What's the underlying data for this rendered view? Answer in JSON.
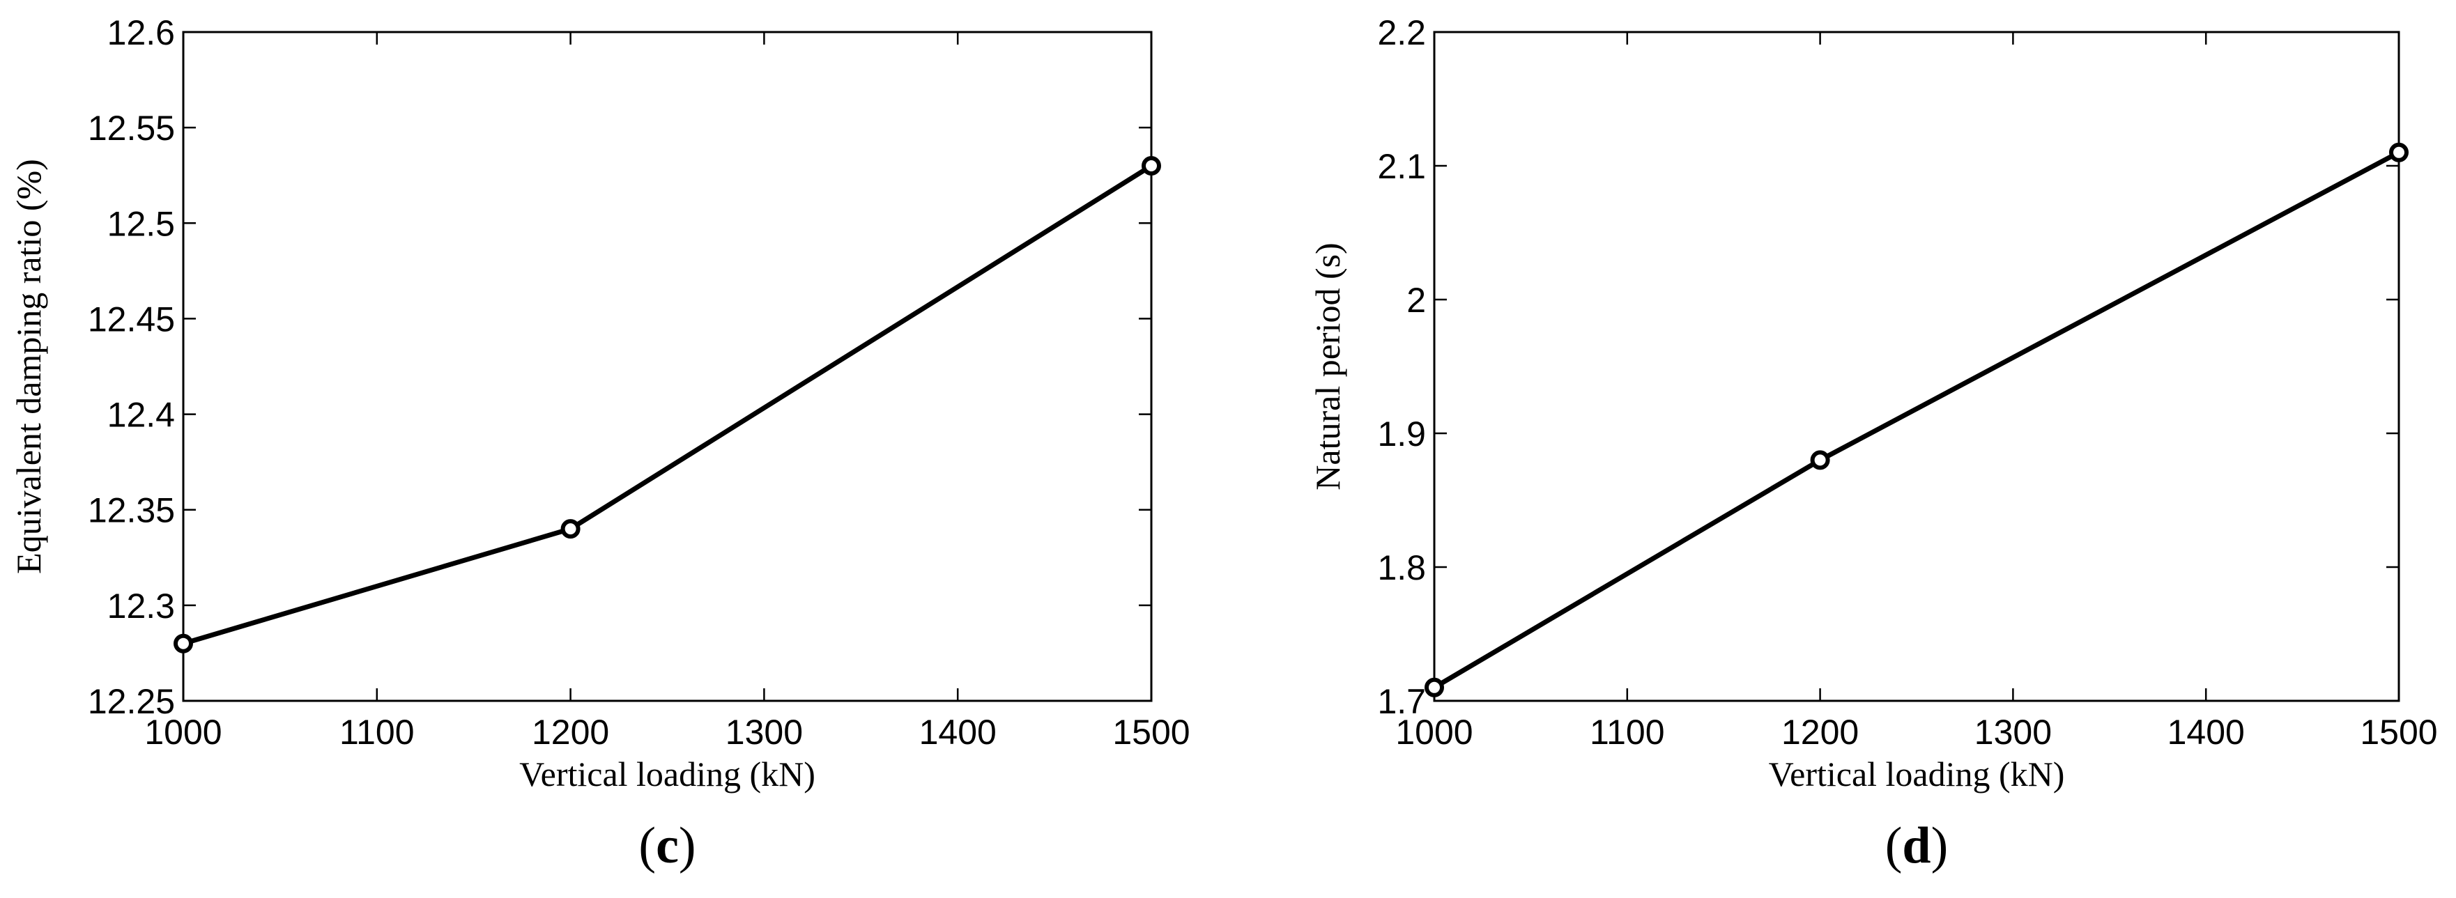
{
  "chart_data": [
    {
      "type": "line",
      "panel_label": {
        "open": "(",
        "letter": "c",
        "close": ")"
      },
      "xlabel": "Vertical loading (kN)",
      "ylabel": "Equivalent damping ratio (%)",
      "xlim": [
        1000,
        1500
      ],
      "ylim": [
        12.25,
        12.6
      ],
      "xticks": [
        1000,
        1100,
        1200,
        1300,
        1400,
        1500
      ],
      "xtick_labels": [
        "1000",
        "1100",
        "1200",
        "1300",
        "1400",
        "1500"
      ],
      "yticks": [
        12.25,
        12.3,
        12.35,
        12.4,
        12.45,
        12.5,
        12.55,
        12.6
      ],
      "ytick_labels": [
        "12.25",
        "12.3",
        "12.35",
        "12.4",
        "12.45",
        "12.5",
        "12.55",
        "12.6"
      ],
      "grid": false,
      "marker": "circle",
      "series": [
        {
          "x": [
            1000,
            1200,
            1500
          ],
          "y": [
            12.28,
            12.34,
            12.53
          ]
        }
      ]
    },
    {
      "type": "line",
      "panel_label": {
        "open": "(",
        "letter": "d",
        "close": ")"
      },
      "xlabel": "Vertical loading (kN)",
      "ylabel": "Natural period (s)",
      "xlim": [
        1000,
        1500
      ],
      "ylim": [
        1.7,
        2.2
      ],
      "xticks": [
        1000,
        1100,
        1200,
        1300,
        1400,
        1500
      ],
      "xtick_labels": [
        "1000",
        "1100",
        "1200",
        "1300",
        "1400",
        "1500"
      ],
      "yticks": [
        1.7,
        1.8,
        1.9,
        2.0,
        2.1,
        2.2
      ],
      "ytick_labels": [
        "1.7",
        "1.8",
        "1.9",
        "2",
        "2.1",
        "2.2"
      ],
      "grid": false,
      "marker": "circle",
      "series": [
        {
          "x": [
            1000,
            1200,
            1500
          ],
          "y": [
            1.71,
            1.88,
            2.11
          ]
        }
      ]
    }
  ]
}
